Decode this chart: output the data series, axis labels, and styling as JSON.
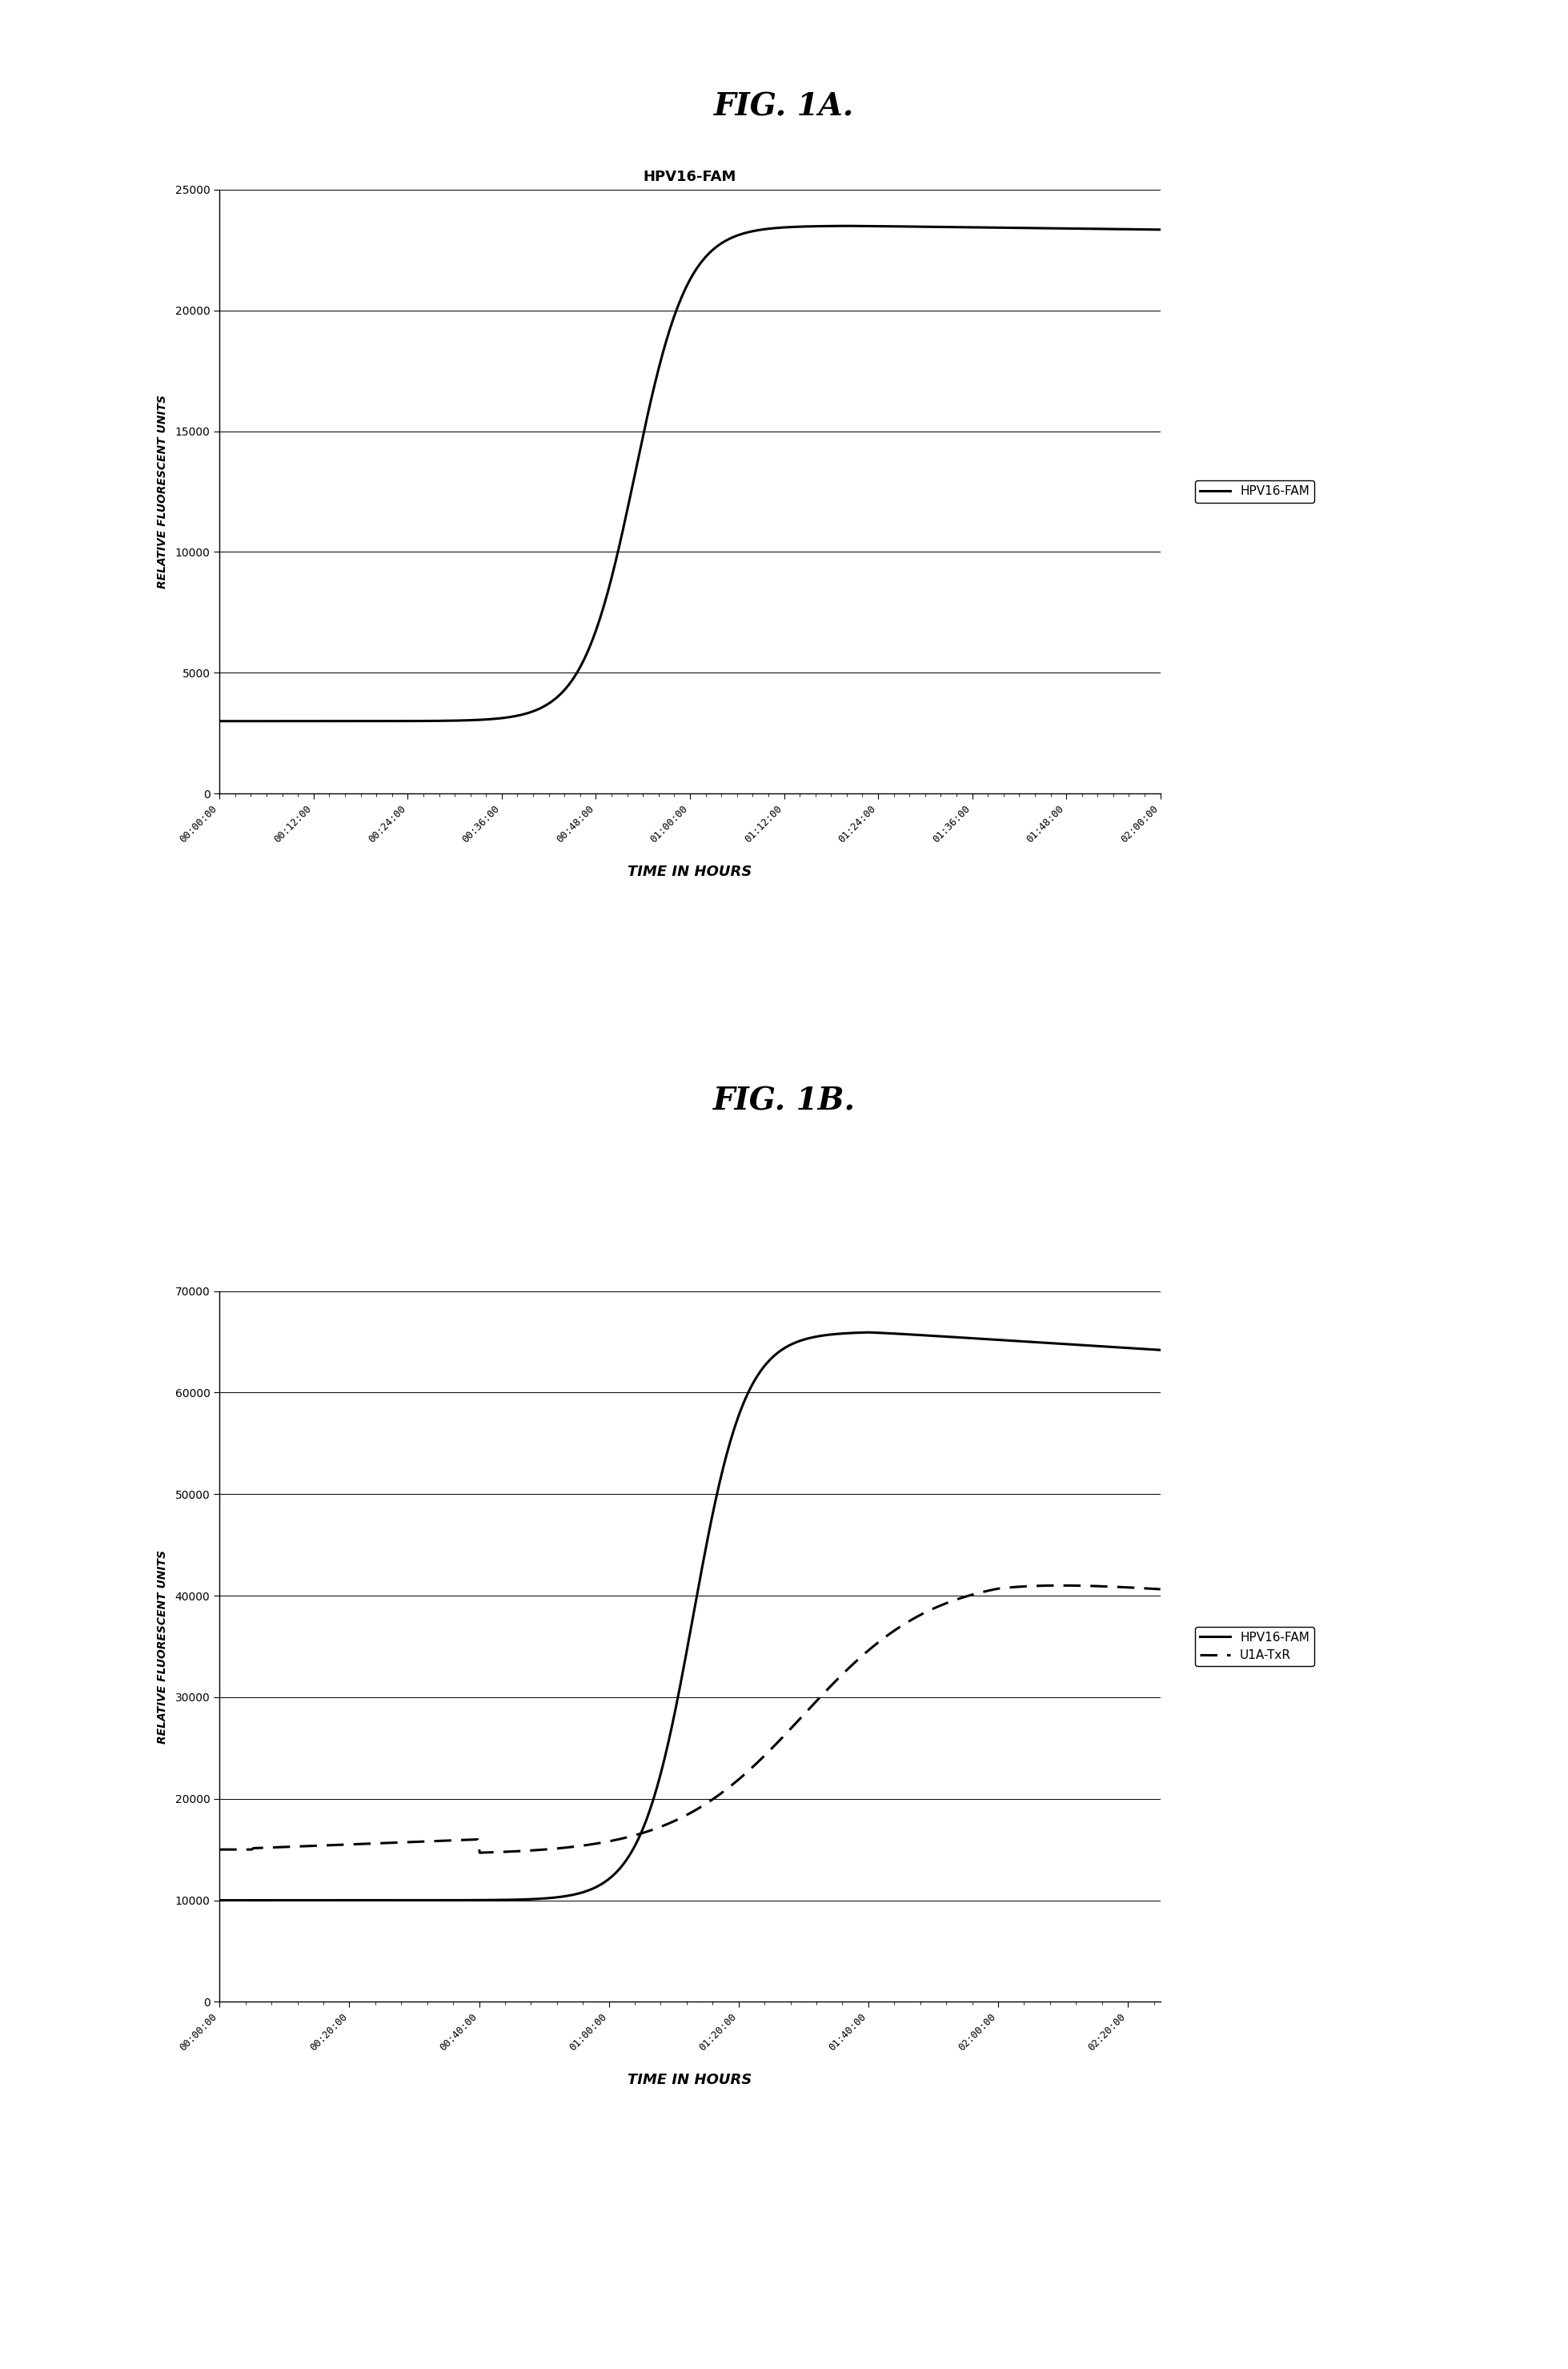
{
  "fig1a_title": "FIG. 1A.",
  "fig1b_title": "FIG. 1B.",
  "chart1_subtitle": "HPV16-FAM",
  "chart1_ylabel": "RELATIVE FLUORESCENT UNITS",
  "chart1_xlabel": "TIME IN HOURS",
  "chart1_ylim": [
    0,
    25000
  ],
  "chart1_yticks": [
    0,
    5000,
    10000,
    15000,
    20000,
    25000
  ],
  "chart1_xtick_labels": [
    "00:00:00",
    "00:12:00",
    "00:24:00",
    "00:36:00",
    "00:48:00",
    "01:00:00",
    "01:12:00",
    "01:24:00",
    "01:36:00",
    "01:48:00",
    "02:00:00"
  ],
  "chart1_legend": [
    "HPV16-FAM"
  ],
  "chart2_ylabel": "RELATIVE FLUORESCENT UNITS",
  "chart2_xlabel": "TIME IN HOURS",
  "chart2_ylim": [
    0,
    70000
  ],
  "chart2_yticks": [
    0,
    10000,
    20000,
    30000,
    40000,
    50000,
    60000,
    70000
  ],
  "chart2_xtick_labels": [
    "00:00:00",
    "00:20:00",
    "00:40:00",
    "01:00:00",
    "01:20:00",
    "01:40:00",
    "02:00:00",
    "02:20:00"
  ],
  "chart2_legend": [
    "HPV16-FAM",
    "U1A-TxR"
  ],
  "bg_color": "#ffffff",
  "line_color": "#000000"
}
